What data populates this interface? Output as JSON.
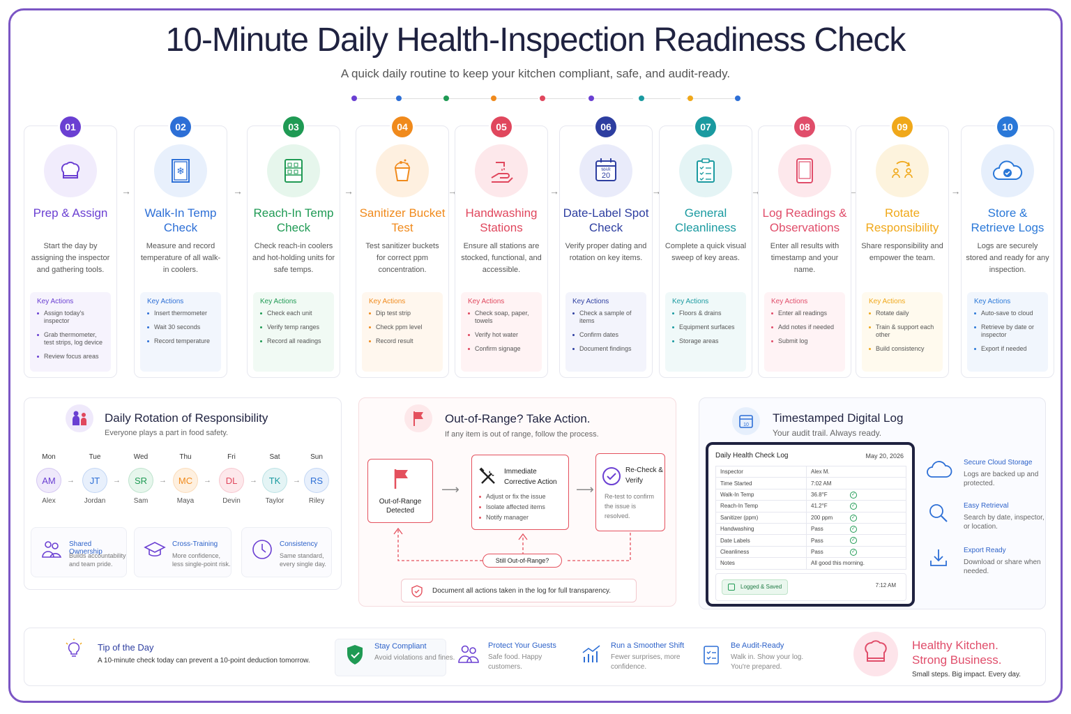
{
  "header": {
    "title": "10-Minute Daily Health-Inspection Readiness Check",
    "subtitle": "A quick daily routine to keep your kitchen compliant, safe, and audit-ready."
  },
  "colors": {
    "purple": "#6a3fd2",
    "blue": "#2d6fd6",
    "green": "#1f9a54",
    "orange": "#f08a1c",
    "pink": "#e0475d",
    "navy": "#2d3ea0",
    "teal": "#1a9aa0",
    "rose": "#e04d6a",
    "gold": "#f0a81a",
    "sky": "#2a78d8",
    "frame": "#7b55c4"
  },
  "steps": [
    {
      "num": "01",
      "icon": "chef-hat-icon",
      "title": "Prep & Assign",
      "desc": "Start the day by assigning the inspector and gathering tools.",
      "ka_title": "Key Actions",
      "actions": [
        "Assign today's inspector",
        "Grab thermometer, test strips, log device",
        "Review focus areas"
      ]
    },
    {
      "num": "02",
      "icon": "walk-in-cooler-icon",
      "title": "Walk-In Temp Check",
      "desc": "Measure and record temperature of all walk-in coolers.",
      "ka_title": "Key Actions",
      "actions": [
        "Insert thermometer",
        "Wait 30 seconds",
        "Record temperature"
      ]
    },
    {
      "num": "03",
      "icon": "reach-in-cooler-icon",
      "title": "Reach-In Temp Check",
      "desc": "Check reach-in coolers and hot-holding units for safe temps.",
      "ka_title": "Key Actions",
      "actions": [
        "Check each unit",
        "Verify temp ranges",
        "Record all readings"
      ]
    },
    {
      "num": "04",
      "icon": "sanitizer-bucket-icon",
      "title": "Sanitizer Bucket Test",
      "desc": "Test sanitizer buckets for correct ppm concentration.",
      "ka_title": "Key Actions",
      "actions": [
        "Dip test strip",
        "Check ppm level",
        "Record result"
      ]
    },
    {
      "num": "05",
      "icon": "handwashing-icon",
      "title": "Handwashing Stations",
      "desc": "Ensure all stations are stocked, functional, and accessible.",
      "ka_title": "Key Actions",
      "actions": [
        "Check soap, paper, towels",
        "Verify hot water",
        "Confirm signage"
      ]
    },
    {
      "num": "06",
      "icon": "calendar-icon",
      "title": "Date-Label Spot Check",
      "desc": "Verify proper dating and rotation on key items.",
      "ka_title": "Key Actions",
      "actions": [
        "Check a sample of items",
        "Confirm dates",
        "Document findings"
      ],
      "cal_month": "MAR",
      "cal_day": "20"
    },
    {
      "num": "07",
      "icon": "clipboard-icon",
      "title": "General Cleanliness",
      "desc": "Complete a quick visual sweep of key areas.",
      "ka_title": "Key Actions",
      "actions": [
        "Floors & drains",
        "Equipment surfaces",
        "Storage areas"
      ]
    },
    {
      "num": "08",
      "icon": "tablet-icon",
      "title": "Log Readings & Observations",
      "desc": "Enter all results with timestamp and your name.",
      "ka_title": "Key Actions",
      "actions": [
        "Enter all readings",
        "Add notes if needed",
        "Submit log"
      ]
    },
    {
      "num": "09",
      "icon": "rotate-people-icon",
      "title": "Rotate Responsibility",
      "desc": "Share responsibility and empower the team.",
      "ka_title": "Key Actions",
      "actions": [
        "Rotate daily",
        "Train & support each other",
        "Build consistency"
      ]
    },
    {
      "num": "10",
      "icon": "cloud-check-icon",
      "title": "Store & Retrieve Logs",
      "desc": "Logs are securely stored and ready for any inspection.",
      "ka_title": "Key Actions",
      "actions": [
        "Auto-save to cloud",
        "Retrieve by date or inspector",
        "Export if needed"
      ]
    }
  ],
  "rotation": {
    "title": "Daily Rotation of Responsibility",
    "subtitle": "Everyone plays a part in food safety.",
    "days": [
      {
        "day": "Mon",
        "initials": "AM",
        "name": "Alex"
      },
      {
        "day": "Tue",
        "initials": "JT",
        "name": "Jordan"
      },
      {
        "day": "Wed",
        "initials": "SR",
        "name": "Sam"
      },
      {
        "day": "Thu",
        "initials": "MC",
        "name": "Maya"
      },
      {
        "day": "Fri",
        "initials": "DL",
        "name": "Devin"
      },
      {
        "day": "Sat",
        "initials": "TK",
        "name": "Taylor"
      },
      {
        "day": "Sun",
        "initials": "RS",
        "name": "Riley"
      }
    ],
    "cards": [
      {
        "title": "Shared Ownership",
        "desc": "Builds accountability and team pride."
      },
      {
        "title": "Cross-Training",
        "desc": "More confidence, less single-point risk."
      },
      {
        "title": "Consistency",
        "desc": "Same standard, every single day."
      }
    ]
  },
  "action": {
    "title": "Out-of-Range? Take Action.",
    "subtitle": "If any item is out of range, follow the process.",
    "detected": "Out-of-Range Detected",
    "corrective_title": "Immediate Corrective Action",
    "corrective_items": [
      "Adjust or fix the issue",
      "Isolate affected items",
      "Notify manager"
    ],
    "recheck_title": "Re-Check & Verify",
    "recheck_desc": "Re-test to confirm the issue is resolved.",
    "loop_label": "Still Out-of-Range?",
    "note": "Document all actions taken in the log for full transparency."
  },
  "digital_log": {
    "title": "Timestamped Digital Log",
    "subtitle": "Your audit trail. Always ready.",
    "log_title": "Daily Health Check Log",
    "log_date": "May 20, 2026",
    "rows": [
      {
        "label": "Inspector",
        "value": "Alex M.",
        "check": false
      },
      {
        "label": "Time Started",
        "value": "7:02 AM",
        "check": false
      },
      {
        "label": "Walk-In Temp",
        "value": "36.8°F",
        "check": true
      },
      {
        "label": "Reach-In Temp",
        "value": "41.2°F",
        "check": true
      },
      {
        "label": "Sanitizer (ppm)",
        "value": "200 ppm",
        "check": true
      },
      {
        "label": "Handwashing",
        "value": "Pass",
        "check": true
      },
      {
        "label": "Date Labels",
        "value": "Pass",
        "check": true
      },
      {
        "label": "Cleanliness",
        "value": "Pass",
        "check": true
      },
      {
        "label": "Notes",
        "value": "All good this morning.",
        "check": false
      }
    ],
    "saved_label": "Logged & Saved",
    "saved_time": "7:12 AM",
    "features": [
      {
        "title": "Secure Cloud Storage",
        "desc": "Logs are backed up and protected."
      },
      {
        "title": "Easy Retrieval",
        "desc": "Search by date, inspector, or location."
      },
      {
        "title": "Export Ready",
        "desc": "Download or share when needed."
      }
    ]
  },
  "footer": {
    "tip_title": "Tip of the Day",
    "tip_text": "A 10-minute check today can prevent a 10-point deduction tomorrow.",
    "benefits": [
      {
        "title": "Stay Compliant",
        "desc": "Avoid violations and fines."
      },
      {
        "title": "Protect Your Guests",
        "desc": "Safe food. Happy customers."
      },
      {
        "title": "Run a Smoother Shift",
        "desc": "Fewer surprises, more confidence."
      },
      {
        "title": "Be Audit-Ready",
        "desc": "Walk in. Show your log. You're prepared."
      }
    ],
    "slogan_line1": "Healthy Kitchen.",
    "slogan_line2": "Strong Business.",
    "slogan_sub": "Small steps. Big impact. Every day."
  }
}
